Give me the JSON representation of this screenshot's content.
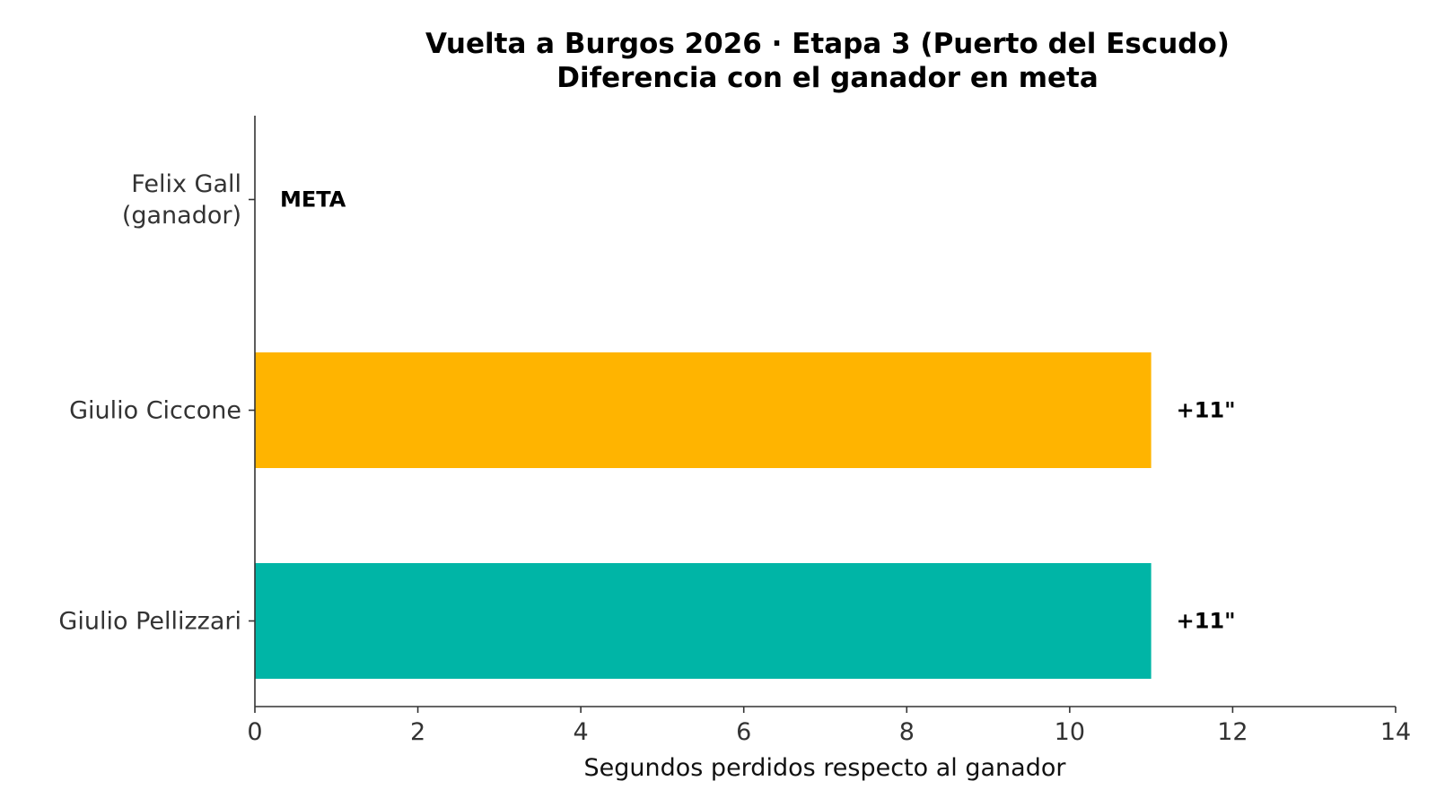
{
  "chart_data": {
    "type": "bar",
    "orientation": "horizontal",
    "title": "Vuelta a Burgos 2026 · Etapa 3 (Puerto del Escudo)",
    "subtitle": "Diferencia con el ganador en meta",
    "xlabel": "Segundos perdidos respecto al ganador",
    "ylabel": "",
    "xlim": [
      0,
      14
    ],
    "xticks": [
      0,
      2,
      4,
      6,
      8,
      10,
      12,
      14
    ],
    "categories": [
      [
        "Felix Gall",
        "(ganador)"
      ],
      [
        "Giulio Ciccone"
      ],
      [
        "Giulio Pellizzari"
      ]
    ],
    "values": [
      0,
      11,
      11
    ],
    "data_labels": [
      "META",
      "+11\"",
      "+11\""
    ],
    "colors": [
      "#2a9d8f",
      "#FFB400",
      "#00B5A6"
    ],
    "grid": false,
    "legend": "none"
  }
}
